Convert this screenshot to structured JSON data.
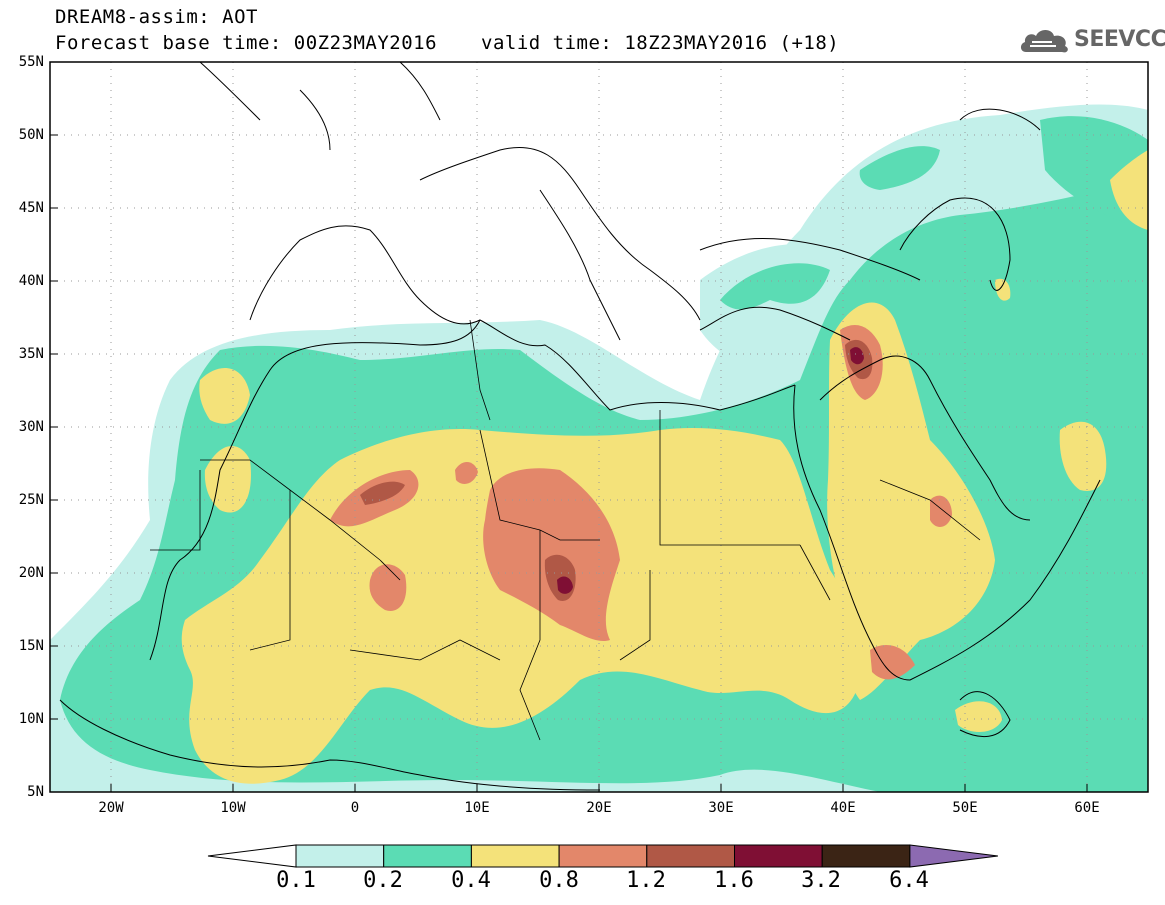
{
  "header": {
    "title_line1": "DREAM8-assim: AOT",
    "base_time": "Forecast base time: 00Z23MAY2016",
    "valid_time": "valid time: 18Z23MAY2016 (+18)",
    "logo_text": "SEEVCCC"
  },
  "map": {
    "lat_labels": [
      "55N",
      "50N",
      "45N",
      "40N",
      "35N",
      "30N",
      "25N",
      "20N",
      "15N",
      "10N",
      "5N"
    ],
    "lon_labels": [
      "20W",
      "10W",
      "0",
      "10E",
      "20E",
      "30E",
      "40E",
      "50E",
      "60E"
    ],
    "extent": {
      "lon_min": -25,
      "lon_max": 65,
      "lat_min": 5,
      "lat_max": 55
    }
  },
  "legend": {
    "colors": [
      "#ffffff",
      "#c3f0ea",
      "#5bdcb4",
      "#f4e27a",
      "#e3876a",
      "#b05846",
      "#7f0f34",
      "#3b2415",
      "#8c6ab1"
    ],
    "labels": [
      "0.1",
      "0.2",
      "0.4",
      "0.8",
      "1.2",
      "1.6",
      "3.2",
      "6.4"
    ]
  }
}
